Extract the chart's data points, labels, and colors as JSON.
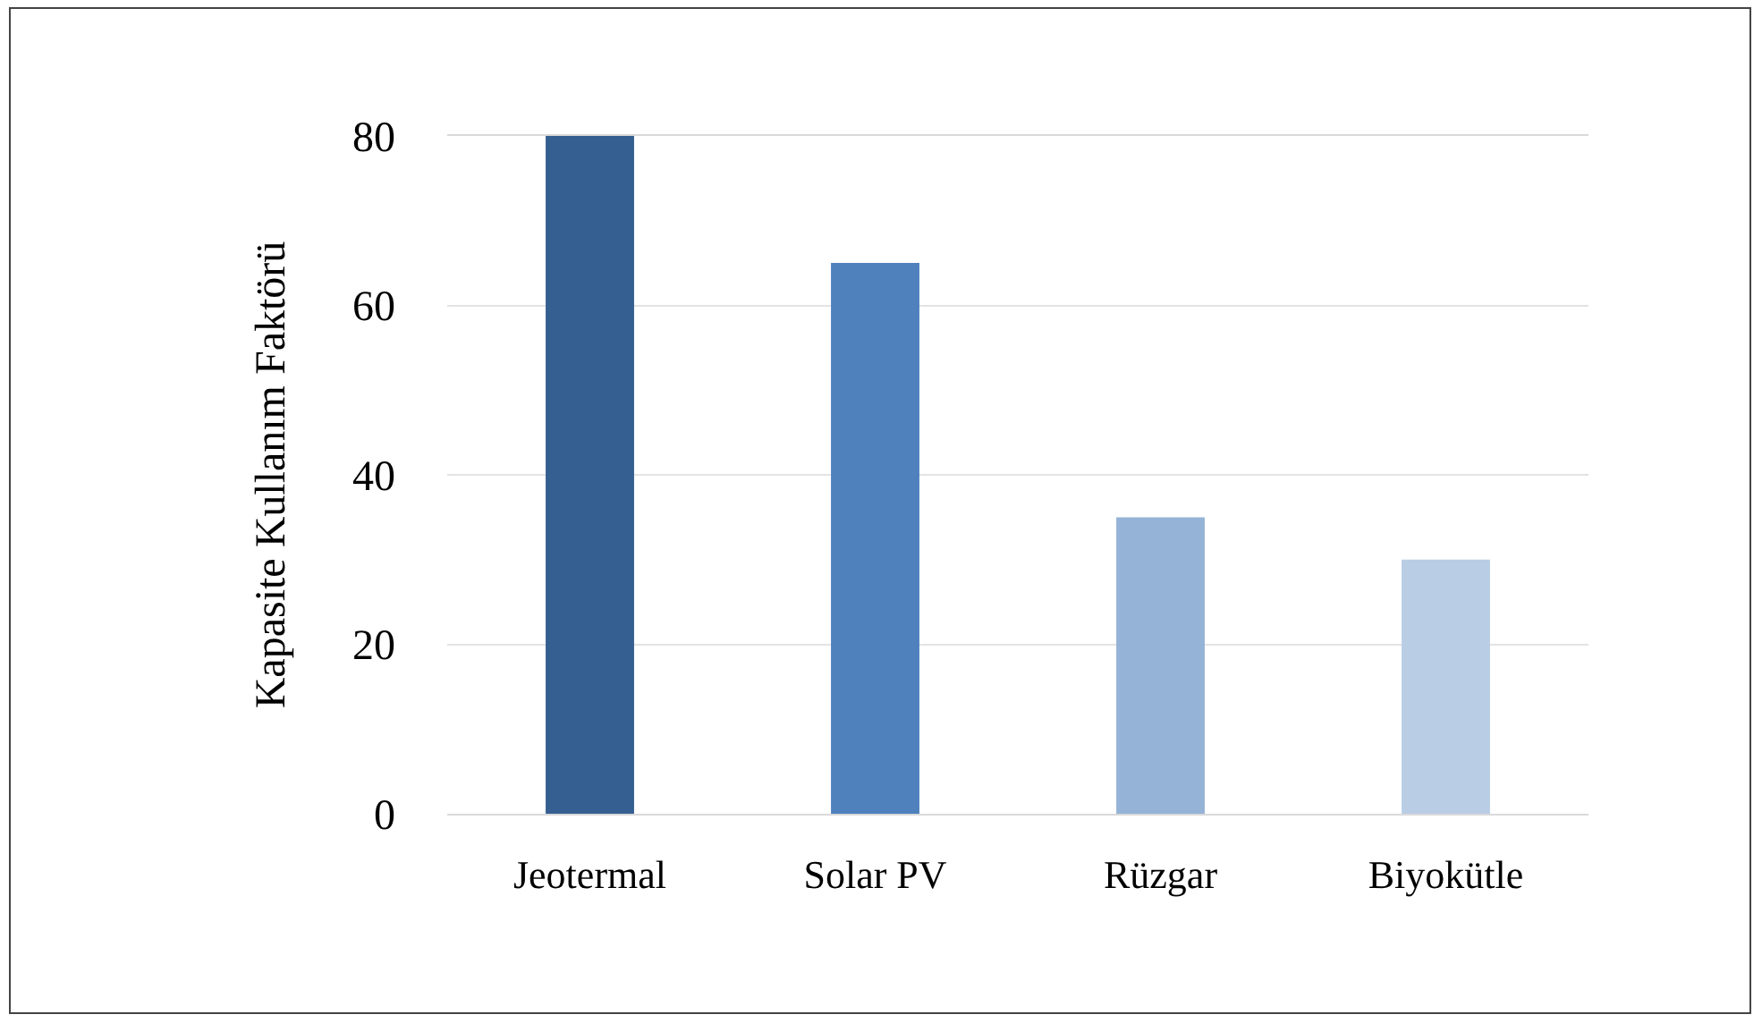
{
  "chart_data": {
    "type": "bar",
    "ylabel": "Kapasite Kullanım Faktörü",
    "categories": [
      "Jeotermal",
      "Solar PV",
      "Rüzgar",
      "Biyokütle"
    ],
    "values": [
      80,
      65,
      35,
      30
    ],
    "colors": [
      "#355f91",
      "#4f81bd",
      "#95b3d7",
      "#b9cde5"
    ],
    "ylim": [
      0,
      80
    ],
    "yticks": [
      0,
      20,
      40,
      60,
      80
    ],
    "grid": "y"
  }
}
